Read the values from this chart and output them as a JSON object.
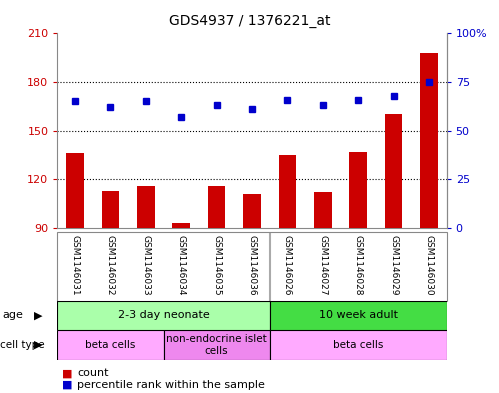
{
  "title": "GDS4937 / 1376221_at",
  "samples": [
    "GSM1146031",
    "GSM1146032",
    "GSM1146033",
    "GSM1146034",
    "GSM1146035",
    "GSM1146036",
    "GSM1146026",
    "GSM1146027",
    "GSM1146028",
    "GSM1146029",
    "GSM1146030"
  ],
  "counts": [
    136,
    113,
    116,
    93,
    116,
    111,
    135,
    112,
    137,
    160,
    198
  ],
  "percentiles": [
    65,
    62,
    65,
    57,
    63,
    61,
    66,
    63,
    66,
    68,
    75
  ],
  "ylim_left": [
    90,
    210
  ],
  "ylim_right": [
    0,
    100
  ],
  "yticks_left": [
    90,
    120,
    150,
    180,
    210
  ],
  "yticks_right": [
    0,
    25,
    50,
    75,
    100
  ],
  "ytick_labels_left": [
    "90",
    "120",
    "150",
    "180",
    "210"
  ],
  "ytick_labels_right": [
    "0",
    "25",
    "50",
    "75",
    "100%"
  ],
  "bar_color": "#cc0000",
  "dot_color": "#0000cc",
  "grid_color": "#000000",
  "hgrid_ticks": [
    120,
    150,
    180
  ],
  "age_groups": [
    {
      "label": "2-3 day neonate",
      "start": 0,
      "end": 6,
      "color": "#aaffaa"
    },
    {
      "label": "10 week adult",
      "start": 6,
      "end": 11,
      "color": "#44dd44"
    }
  ],
  "cell_type_groups": [
    {
      "label": "beta cells",
      "start": 0,
      "end": 3,
      "color": "#ffaaff"
    },
    {
      "label": "non-endocrine islet\ncells",
      "start": 3,
      "end": 6,
      "color": "#ee88ee"
    },
    {
      "label": "beta cells",
      "start": 6,
      "end": 11,
      "color": "#ffaaff"
    }
  ],
  "legend_items": [
    {
      "color": "#cc0000",
      "label": "count"
    },
    {
      "color": "#0000cc",
      "label": "percentile rank within the sample"
    }
  ],
  "bg_color": "#ffffff",
  "plot_bg": "#ffffff",
  "tick_area_color": "#cccccc",
  "border_color": "#888888",
  "separator_color": "#aaaaaa"
}
